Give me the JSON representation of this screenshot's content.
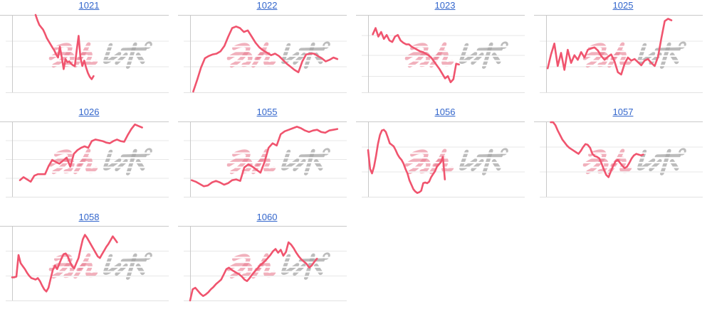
{
  "page": {
    "background": "#ffffff",
    "description_note": "grid of sparkline charts with linked numeric titles"
  },
  "style": {
    "line_color": "#f0546e",
    "grid_color": "#e7e7e7",
    "axis_color": "#c9c9c9",
    "bottom_line_color": "#e2e2e2",
    "link_color": "#3366cc",
    "watermark_pink": "#e87c90",
    "watermark_gray": "#a6a6a6"
  },
  "watermark": {
    "text": "みんレポ",
    "name": "minrepo-logo-watermark"
  },
  "chart_data_note": "No axis tick labels are visible in the image; y values are estimated as percent-from-top of each plot box (0=top line, 100=bottom line). x_start_pct/x_end_pct give the horizontal span of the series within the plot box. grid_fracs are the vertical positions of inner gridlines as % of plot height.",
  "chart_data": [
    {
      "type": "line",
      "title": "1021",
      "x_start_pct": 15,
      "x_end_pct": 52,
      "grid_fracs": [
        33.3,
        66.7
      ],
      "y_pct_from_top": [
        0,
        7,
        13,
        16,
        19,
        24,
        30,
        34,
        38,
        42,
        46,
        51,
        55,
        41,
        55,
        70,
        57,
        61,
        60,
        63,
        65,
        66,
        45,
        27,
        55,
        66,
        59,
        68,
        75,
        80,
        83,
        79
      ]
    },
    {
      "type": "line",
      "title": "1022",
      "x_start_pct": 2,
      "x_end_pct": 94,
      "grid_fracs": [
        33.3,
        66.7
      ],
      "y_pct_from_top": [
        99,
        84,
        68,
        56,
        53,
        51,
        50,
        47,
        40,
        28,
        17,
        15,
        17,
        22,
        20,
        28,
        36,
        42,
        46,
        49,
        52,
        50,
        53,
        58,
        63,
        67,
        71,
        74,
        60,
        51,
        50,
        50,
        53,
        56,
        60,
        58,
        55,
        57
      ]
    },
    {
      "type": "line",
      "title": "1023",
      "x_start_pct": 3,
      "x_end_pct": 58,
      "grid_fracs": [
        26,
        52,
        79
      ],
      "y_pct_from_top": [
        25,
        17,
        28,
        22,
        31,
        26,
        33,
        35,
        28,
        26,
        33,
        36,
        38,
        38,
        41,
        43,
        45,
        47,
        48,
        50,
        52,
        55,
        60,
        65,
        70,
        76,
        82,
        79,
        87,
        83,
        63,
        64
      ]
    },
    {
      "type": "line",
      "title": "1025",
      "x_start_pct": 1,
      "x_end_pct": 80,
      "grid_fracs": [
        33.3,
        66.7
      ],
      "y_pct_from_top": [
        69,
        51,
        37,
        66,
        49,
        71,
        45,
        62,
        52,
        58,
        48,
        55,
        45,
        43,
        42,
        46,
        53,
        58,
        54,
        51,
        60,
        74,
        77,
        63,
        55,
        59,
        57,
        61,
        65,
        59,
        57,
        62,
        66,
        54,
        30,
        8,
        5,
        7
      ]
    },
    {
      "type": "line",
      "title": "1026",
      "x_start_pct": 5,
      "x_end_pct": 83,
      "grid_fracs": [
        25,
        50,
        75
      ],
      "y_pct_from_top": [
        78,
        74,
        77,
        80,
        72,
        70,
        70,
        70,
        59,
        51,
        54,
        56,
        52,
        48,
        60,
        43,
        38,
        35,
        33,
        35,
        26,
        24,
        25,
        26,
        28,
        29,
        26,
        24,
        26,
        27,
        18,
        10,
        4,
        6,
        8
      ]
    },
    {
      "type": "line",
      "title": "1055",
      "x_start_pct": 1,
      "x_end_pct": 94,
      "grid_fracs": [
        25,
        50,
        75
      ],
      "y_pct_from_top": [
        78,
        80,
        83,
        86,
        85,
        81,
        79,
        81,
        84,
        82,
        78,
        77,
        79,
        61,
        57,
        60,
        64,
        68,
        54,
        35,
        29,
        32,
        17,
        13,
        11,
        9,
        7,
        9,
        12,
        14,
        12,
        11,
        14,
        15,
        12,
        11,
        10
      ]
    },
    {
      "type": "line",
      "title": "1056",
      "x_start_pct": 0,
      "x_end_pct": 49,
      "grid_fracs": [
        33.3,
        66.7
      ],
      "y_pct_from_top": [
        38,
        63,
        69,
        60,
        46,
        30,
        18,
        12,
        11,
        14,
        21,
        29,
        31,
        33,
        38,
        44,
        48,
        51,
        56,
        63,
        69,
        78,
        84,
        90,
        93,
        95,
        94,
        92,
        82,
        81,
        82,
        80,
        74,
        70,
        66,
        60,
        57,
        54,
        47,
        77
      ]
    },
    {
      "type": "line",
      "title": "1057",
      "x_start_pct": 3,
      "x_end_pct": 62,
      "grid_fracs": [
        33.3,
        66.7
      ],
      "y_pct_from_top": [
        1,
        1,
        5,
        12,
        18,
        24,
        28,
        32,
        35,
        37,
        39,
        41,
        43,
        39,
        34,
        30,
        31,
        35,
        43,
        46,
        47,
        49,
        56,
        64,
        71,
        74,
        66,
        59,
        53,
        51,
        55,
        59,
        62,
        60,
        55,
        49,
        45,
        43,
        44,
        45,
        44
      ]
    },
    {
      "type": "line",
      "title": "1058",
      "x_start_pct": 0,
      "x_end_pct": 67,
      "grid_fracs": [
        33.3,
        66.7
      ],
      "y_pct_from_top": [
        69,
        69,
        68,
        39,
        50,
        54,
        58,
        63,
        67,
        70,
        71,
        72,
        70,
        74,
        80,
        85,
        88,
        83,
        71,
        59,
        53,
        58,
        51,
        44,
        38,
        37,
        41,
        48,
        54,
        57,
        50,
        43,
        30,
        18,
        12,
        16,
        21,
        26,
        31,
        36,
        41,
        43,
        38,
        33,
        28,
        24,
        19,
        14,
        18,
        22
      ]
    },
    {
      "type": "line",
      "title": "1060",
      "x_start_pct": 0,
      "x_end_pct": 81,
      "grid_fracs": [
        33.3,
        66.7
      ],
      "y_pct_from_top": [
        100,
        85,
        83,
        87,
        91,
        94,
        92,
        89,
        85,
        82,
        78,
        75,
        72,
        65,
        58,
        56,
        59,
        61,
        63,
        65,
        68,
        72,
        74,
        70,
        65,
        61,
        57,
        53,
        50,
        47,
        43,
        39,
        34,
        31,
        36,
        32,
        40,
        35,
        22,
        25,
        30,
        36,
        41,
        45,
        48,
        51,
        56,
        53,
        48,
        44
      ]
    }
  ]
}
